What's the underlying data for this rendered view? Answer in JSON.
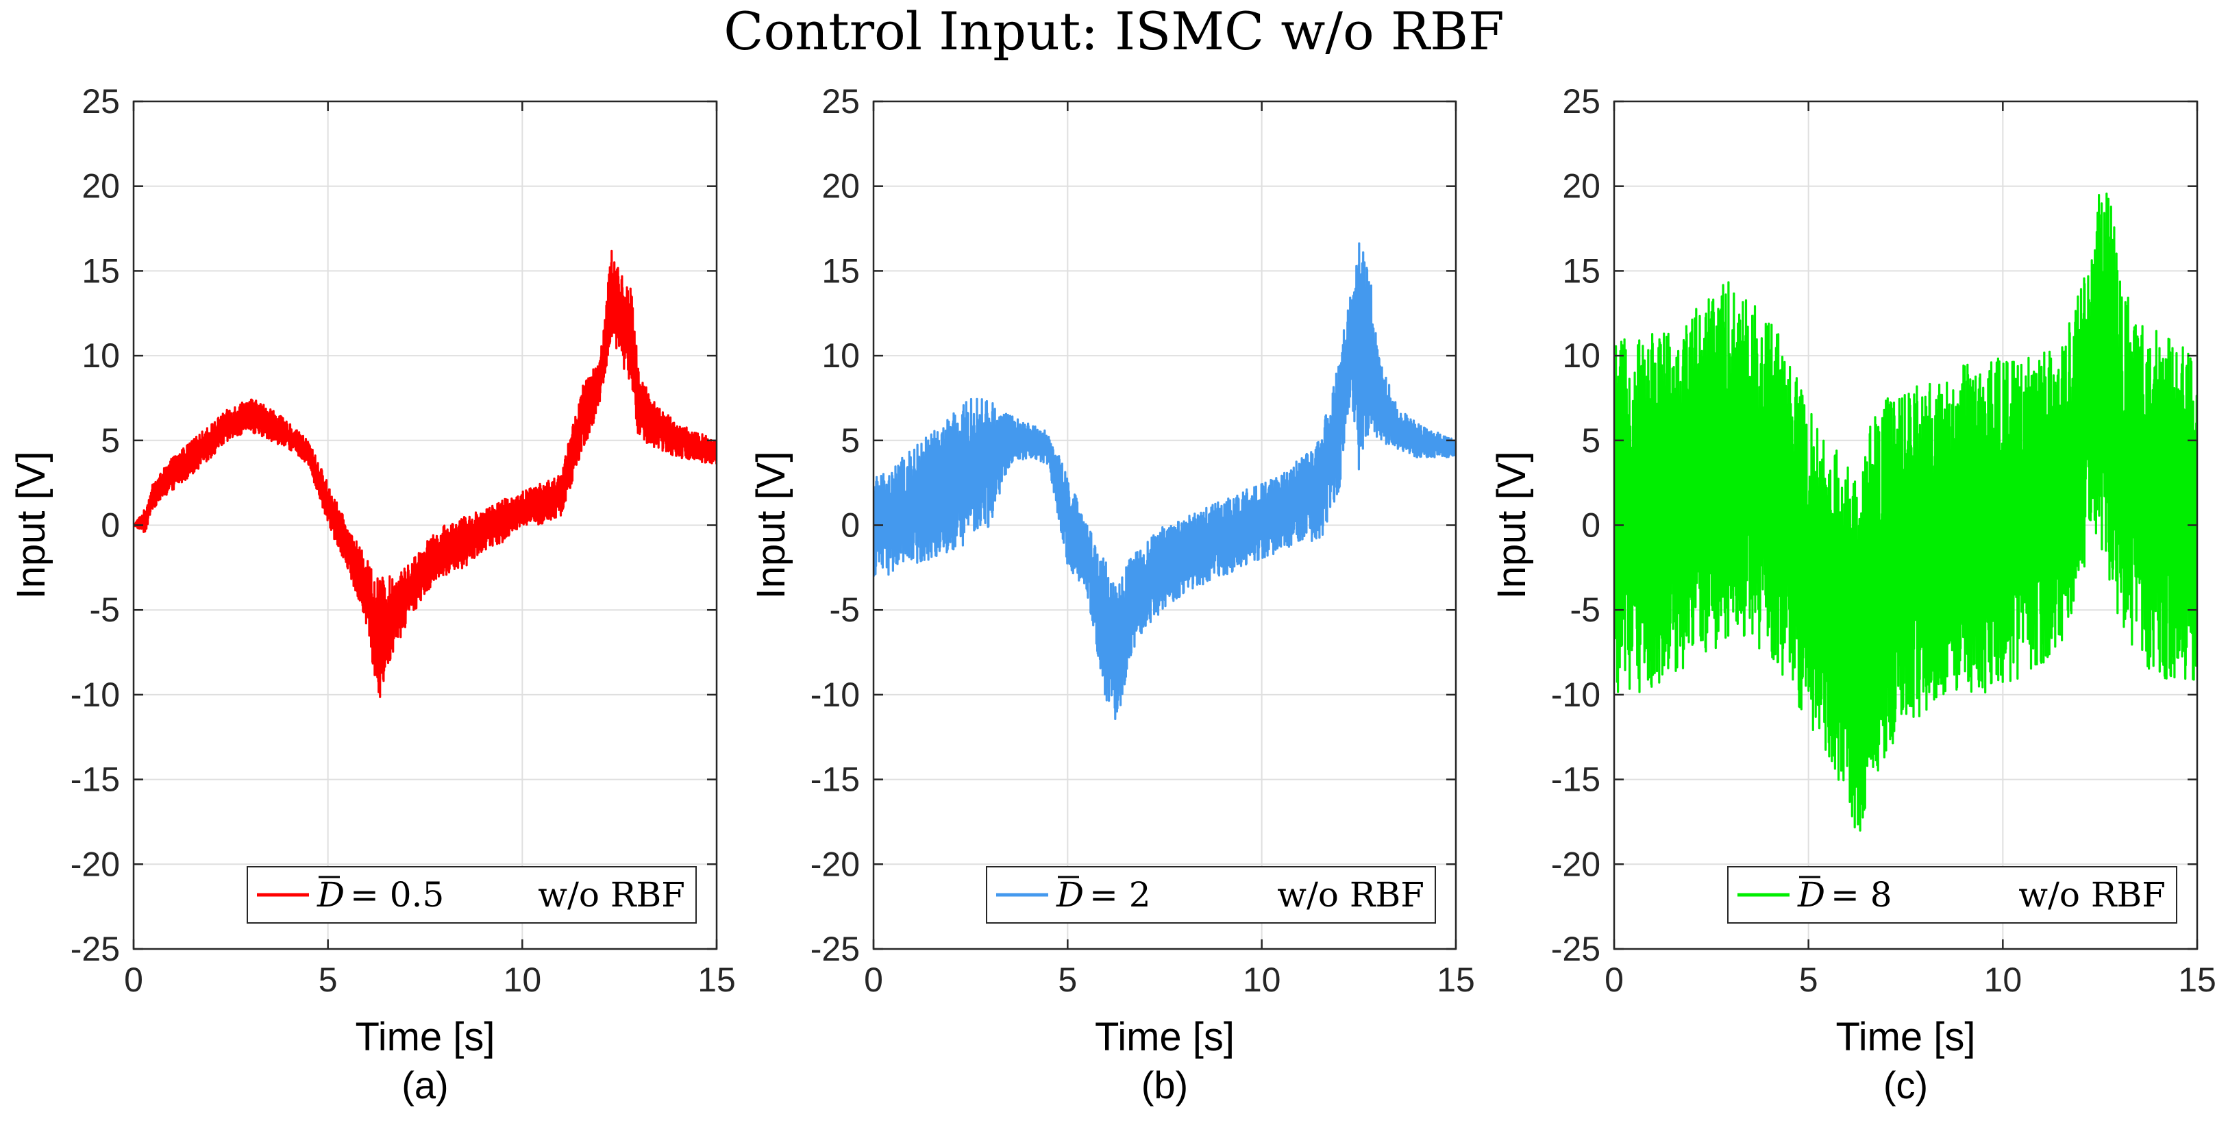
{
  "figure": {
    "title": "Control Input: ISMC w/o RBF"
  },
  "chart_data": [
    {
      "type": "line",
      "panel_label": "(a)",
      "title": "",
      "xlabel": "Time [s]",
      "ylabel": "Input [V]",
      "xlim": [
        0,
        15
      ],
      "ylim": [
        -25,
        25
      ],
      "xticks": [
        "0",
        "5",
        "10",
        "15"
      ],
      "yticks": [
        "25",
        "20",
        "15",
        "10",
        "5",
        "0",
        "-5",
        "-10",
        "-15",
        "-20",
        "-25"
      ],
      "grid": true,
      "legend_position": "bottom-right",
      "series": [
        {
          "name": "D̄ = 0.5  w/o RBF",
          "legend_symbol": "D",
          "legend_value": "= 0.5",
          "legend_suffix": "w/o RBF",
          "color": "#ff0000",
          "envelope_x": [
            0,
            0.3,
            0.5,
            1,
            1.5,
            2,
            2.5,
            3,
            3.5,
            4,
            4.5,
            5,
            5.5,
            6,
            6.3,
            6.6,
            7,
            7.5,
            8,
            8.5,
            9,
            9.5,
            10,
            10.5,
            11,
            11.5,
            12,
            12.3,
            12.5,
            12.8,
            13,
            13.5,
            14,
            14.5,
            15
          ],
          "upper": [
            0,
            1,
            2.5,
            4,
            5,
            6,
            7,
            7.5,
            7,
            6,
            5,
            2.5,
            0,
            -2,
            -3,
            -3,
            -2.5,
            -1,
            0,
            0.5,
            1,
            1.5,
            2,
            2.5,
            3,
            8,
            10,
            16.5,
            15,
            14,
            9,
            7,
            6,
            5.5,
            5
          ],
          "lower": [
            0,
            -0.5,
            1,
            2,
            3,
            4,
            5,
            5.5,
            5,
            4.5,
            3.5,
            0,
            -2.5,
            -6,
            -10.5,
            -8,
            -6,
            -4,
            -3,
            -2.5,
            -1.5,
            -1,
            0,
            0,
            0.5,
            4,
            7,
            11,
            10,
            8,
            5,
            4.5,
            4,
            3.8,
            3.5
          ],
          "y_range_observed": [
            -10.5,
            16.5
          ]
        }
      ]
    },
    {
      "type": "line",
      "panel_label": "(b)",
      "title": "",
      "xlabel": "Time [s]",
      "ylabel": "Input [V]",
      "xlim": [
        0,
        15
      ],
      "ylim": [
        -25,
        25
      ],
      "xticks": [
        "0",
        "5",
        "10",
        "15"
      ],
      "yticks": [
        "25",
        "20",
        "15",
        "10",
        "5",
        "0",
        "-5",
        "-10",
        "-15",
        "-20",
        "-25"
      ],
      "grid": true,
      "legend_position": "bottom-right",
      "series": [
        {
          "name": "D̄ = 2  w/o RBF",
          "legend_symbol": "D",
          "legend_value": "= 2",
          "legend_suffix": "w/o RBF",
          "color": "#4499ee",
          "envelope_x": [
            0,
            0.5,
            1,
            1.5,
            2,
            2.5,
            3,
            3.5,
            4,
            4.5,
            5,
            5.5,
            6,
            6.3,
            6.6,
            7,
            7.5,
            8,
            8.5,
            9,
            9.5,
            10,
            10.5,
            11,
            11.5,
            12,
            12.3,
            12.5,
            12.8,
            13,
            13.5,
            14,
            14.5,
            15
          ],
          "upper": [
            3,
            3.5,
            4.5,
            5.5,
            6.5,
            7.5,
            7.5,
            6.5,
            6,
            5.5,
            3,
            0,
            -2,
            -3.5,
            -2,
            -1,
            0,
            0.5,
            1,
            1.5,
            2,
            2.5,
            3,
            4,
            5,
            10,
            14,
            17,
            15,
            10,
            7,
            6,
            5.5,
            5
          ],
          "lower": [
            -3,
            -3,
            -2.5,
            -2,
            -1.5,
            -1,
            0,
            3.5,
            4,
            3.5,
            -2.5,
            -4,
            -10.5,
            -12,
            -8,
            -6,
            -5,
            -4,
            -3.5,
            -3,
            -2.5,
            -2,
            -1.5,
            -1,
            -1,
            2,
            8,
            3,
            6,
            5,
            4.5,
            4,
            4,
            4
          ],
          "y_range_observed": [
            -12,
            17
          ]
        }
      ]
    },
    {
      "type": "line",
      "panel_label": "(c)",
      "title": "",
      "xlabel": "Time [s]",
      "ylabel": "Input [V]",
      "xlim": [
        0,
        15
      ],
      "ylim": [
        -25,
        25
      ],
      "xticks": [
        "0",
        "5",
        "10",
        "15"
      ],
      "yticks": [
        "25",
        "20",
        "15",
        "10",
        "5",
        "0",
        "-5",
        "-10",
        "-15",
        "-20",
        "-25"
      ],
      "grid": true,
      "legend_position": "bottom-right",
      "series": [
        {
          "name": "D̄ = 8  w/o RBF",
          "legend_symbol": "D",
          "legend_value": "= 8",
          "legend_suffix": "w/o RBF",
          "color": "#00ee00",
          "envelope_x": [
            0,
            0.5,
            1,
            1.5,
            2,
            2.5,
            3,
            3.5,
            4,
            4.5,
            5,
            5.5,
            6,
            6.3,
            6.6,
            7,
            7.5,
            8,
            8.5,
            9,
            9.5,
            10,
            10.5,
            11,
            11.5,
            12,
            12.3,
            12.5,
            12.8,
            13,
            13.5,
            14,
            14.5,
            15
          ],
          "upper": [
            11,
            11,
            11.5,
            12,
            13,
            14,
            14.5,
            13.5,
            12.5,
            10,
            7,
            5,
            4,
            2,
            6,
            7.5,
            8,
            8.5,
            9,
            9.5,
            9.5,
            10,
            10,
            10.5,
            11,
            14,
            17,
            21,
            19,
            15,
            12,
            11.5,
            11,
            10.5
          ],
          "lower": [
            -10,
            -10,
            -9.5,
            -9,
            -8.5,
            -7.5,
            -6.5,
            -7,
            -8,
            -9.5,
            -12,
            -14,
            -16,
            -19,
            -16,
            -13.5,
            -12,
            -11,
            -10.5,
            -10,
            -10,
            -9.5,
            -9,
            -8.5,
            -7,
            -4,
            0,
            -1,
            -4,
            -6,
            -8,
            -9,
            -9.5,
            -10
          ],
          "y_range_observed": [
            -19,
            21
          ]
        }
      ]
    }
  ]
}
